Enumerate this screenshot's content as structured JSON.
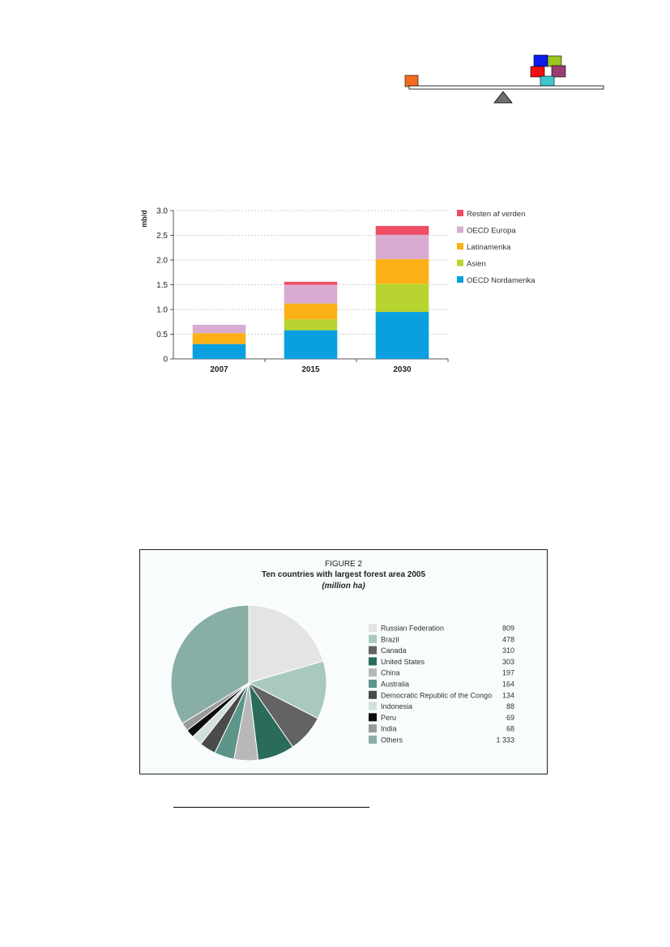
{
  "balance_icon": {
    "left_block": "#f26b1d",
    "right_blocks": [
      "#0a1cf0",
      "#9ac51f",
      "#f20f0f",
      "#9b3d73",
      "#3fc6cf"
    ],
    "beam": "#ffffff",
    "fulcrum": "#6e6e6e"
  },
  "chart_data": [
    {
      "type": "bar",
      "stacked": true,
      "categories": [
        "2007",
        "2015",
        "2030"
      ],
      "ylabel": "mb/d",
      "ylim": [
        0,
        3.0
      ],
      "yticks": [
        "0",
        "0.5",
        "1.0",
        "1.5",
        "2.0",
        "2.5",
        "3.0"
      ],
      "grid": true,
      "legend_position": "right",
      "series": [
        {
          "name": "OECD Nordamerika",
          "color": "#0aa0e0",
          "values": [
            0.3,
            0.58,
            0.95
          ]
        },
        {
          "name": "Asien",
          "color": "#b8d430",
          "values": [
            0.0,
            0.22,
            0.57
          ]
        },
        {
          "name": "Latinamerika",
          "color": "#fbb116",
          "values": [
            0.22,
            0.32,
            0.5
          ]
        },
        {
          "name": "OECD Europa",
          "color": "#d9abd0",
          "values": [
            0.17,
            0.38,
            0.49
          ]
        },
        {
          "name": "Resten af verden",
          "color": "#ee4d64",
          "values": [
            0.0,
            0.06,
            0.18
          ]
        }
      ]
    },
    {
      "type": "pie",
      "label": "FIGURE 2",
      "title": "Ten countries with largest forest area 2005",
      "unit": "(million ha)",
      "legend_position": "right",
      "slices": [
        {
          "name": "Russian Federation",
          "value": 809,
          "value_label": "809",
          "color": "#e4e4e4"
        },
        {
          "name": "Brazil",
          "value": 478,
          "value_label": "478",
          "color": "#a9c9bf"
        },
        {
          "name": "Canada",
          "value": 310,
          "value_label": "310",
          "color": "#636363"
        },
        {
          "name": "United States",
          "value": 303,
          "value_label": "303",
          "color": "#2a6b5c"
        },
        {
          "name": "China",
          "value": 197,
          "value_label": "197",
          "color": "#b8b8b8"
        },
        {
          "name": "Australia",
          "value": 164,
          "value_label": "164",
          "color": "#5e958a"
        },
        {
          "name": "Democratic Republic of the Congo",
          "value": 134,
          "value_label": "134",
          "color": "#4a4a4a"
        },
        {
          "name": "Indonesia",
          "value": 88,
          "value_label": "88",
          "color": "#d2e0dc"
        },
        {
          "name": "Peru",
          "value": 69,
          "value_label": "69",
          "color": "#0c0c0c"
        },
        {
          "name": "India",
          "value": 68,
          "value_label": "68",
          "color": "#999999"
        },
        {
          "name": "Others",
          "value": 1333,
          "value_label": "1 333",
          "color": "#89aea6"
        }
      ]
    }
  ]
}
